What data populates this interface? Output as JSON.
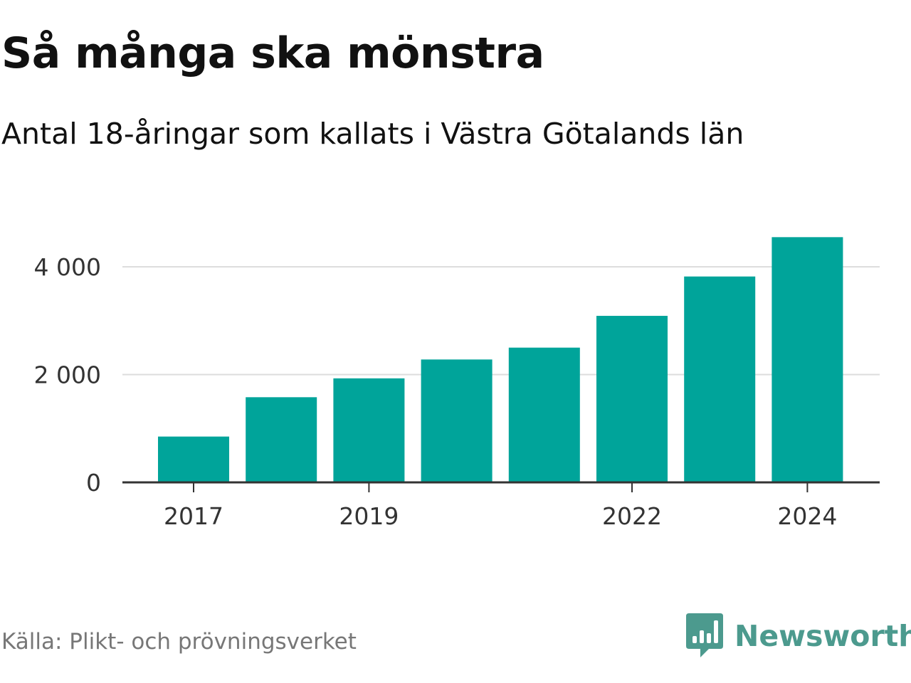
{
  "colors": {
    "bar": "#00a49a",
    "grid": "#dddddd",
    "axis": "#333333",
    "text": "#111111",
    "muted": "#777777",
    "brand": "#4c9a8e"
  },
  "source": "Källa: Plikt- och prövningsverket",
  "brand": {
    "name": "Newsworthy",
    "icon": "newsworthy-logo-icon"
  },
  "chart_data": {
    "type": "bar",
    "title": "Så många ska mönstra",
    "subtitle": "Antal 18-åringar som kallats i Västra Götalands län",
    "categories": [
      "2017",
      "2018",
      "2019",
      "2020",
      "2021",
      "2022",
      "2023",
      "2024"
    ],
    "values": [
      850,
      1580,
      1930,
      2280,
      2500,
      3090,
      3820,
      4550
    ],
    "visible_x_ticks": [
      "2017",
      "2019",
      "2022",
      "2024"
    ],
    "y_ticks": [
      0,
      2000,
      4000
    ],
    "y_tick_labels": [
      "0",
      "2 000",
      "4 000"
    ],
    "ylim": [
      0,
      4550
    ],
    "grid": true,
    "xlabel": "",
    "ylabel": ""
  }
}
